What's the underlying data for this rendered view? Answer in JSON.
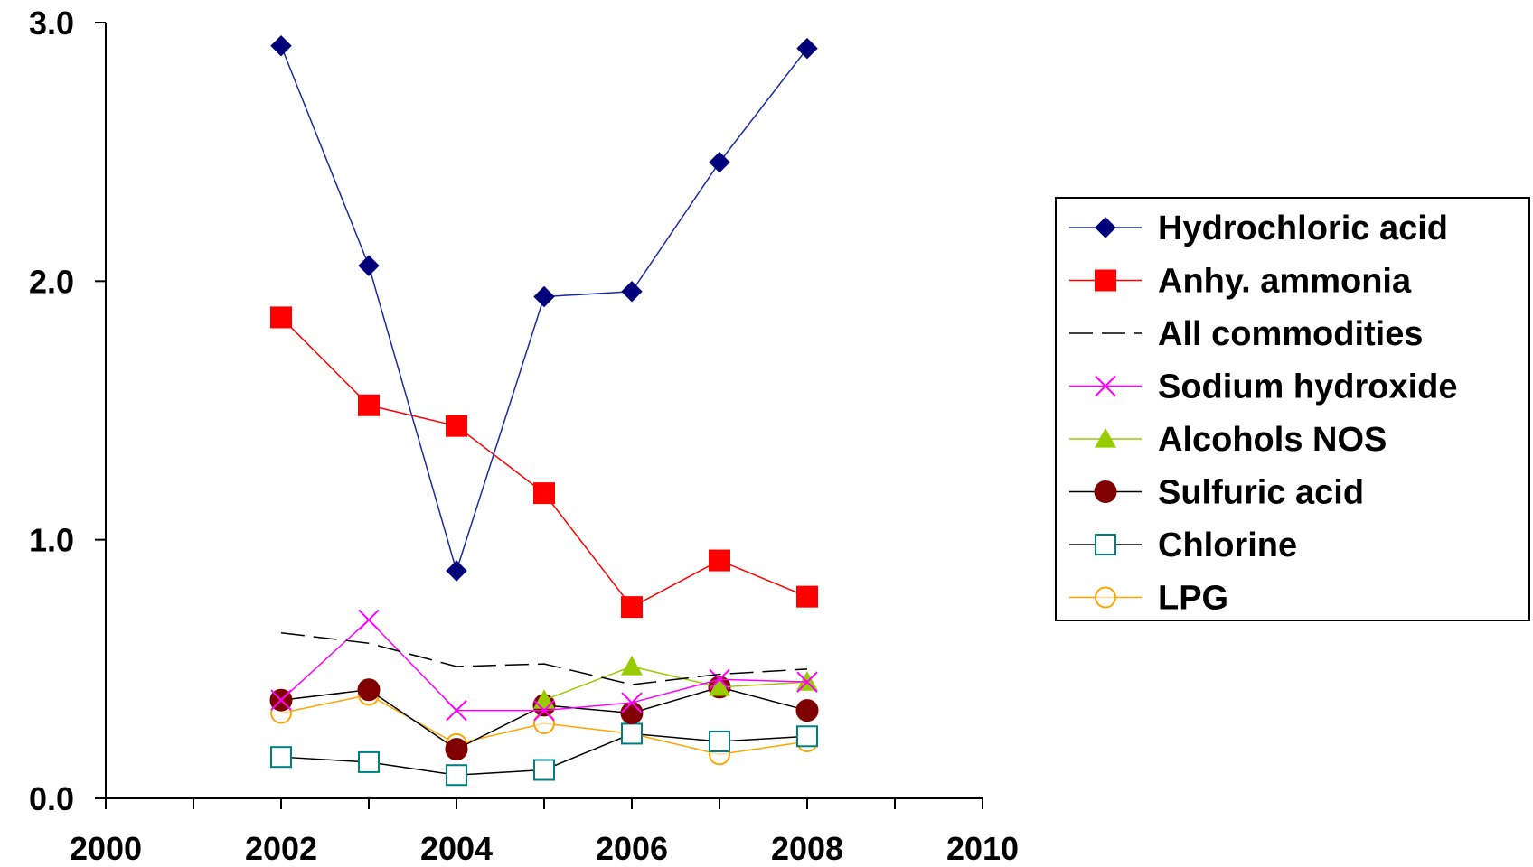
{
  "chart_data": {
    "type": "line",
    "xlim": [
      2000,
      2010
    ],
    "ylim": [
      0,
      3.0
    ],
    "x_ticks": [
      "2000",
      "2002",
      "2004",
      "2006",
      "2008",
      "2010"
    ],
    "y_ticks": [
      "0.0",
      "1.0",
      "2.0",
      "3.0"
    ],
    "x_ticks_minor": [
      2001,
      2003,
      2005,
      2007,
      2009
    ],
    "grid": false,
    "legend_position": "right",
    "x": [
      2002,
      2003,
      2004,
      2005,
      2006,
      2007,
      2008
    ],
    "series": [
      {
        "name": "Hydrochloric acid",
        "color": "#1a2aa8",
        "marker_color": "#00007a",
        "marker": "diamond",
        "dash": false,
        "values": [
          2.91,
          2.06,
          0.88,
          1.94,
          1.96,
          2.46,
          2.9
        ]
      },
      {
        "name": "Anhy. ammonia",
        "color": "#ff0000",
        "marker_color": "#ff0000",
        "marker": "square",
        "dash": false,
        "values": [
          1.86,
          1.52,
          1.44,
          1.18,
          0.74,
          0.92,
          0.78
        ]
      },
      {
        "name": "All commodities",
        "color": "#000000",
        "marker_color": "#000000",
        "marker": "none",
        "dash": true,
        "values": [
          0.64,
          0.6,
          0.51,
          0.52,
          0.44,
          0.48,
          0.5
        ]
      },
      {
        "name": "Sodium hydroxide",
        "color": "#ff00ff",
        "marker_color": "#ff00ff",
        "marker": "x",
        "dash": false,
        "values": [
          0.38,
          0.69,
          0.34,
          0.34,
          0.37,
          0.46,
          0.45
        ]
      },
      {
        "name": "Alcohols NOS",
        "color": "#99cc00",
        "marker_color": "#99cc00",
        "marker": "triangle",
        "dash": false,
        "values": [
          null,
          null,
          null,
          0.38,
          0.51,
          0.43,
          0.45
        ]
      },
      {
        "name": "Sulfuric acid",
        "color": "#000000",
        "marker_color": "#800000",
        "marker": "circle",
        "dash": false,
        "values": [
          0.38,
          0.42,
          0.19,
          0.36,
          0.33,
          0.43,
          0.34
        ]
      },
      {
        "name": "Chlorine",
        "color": "#000000",
        "marker_color": "#008080",
        "marker": "open-square",
        "dash": false,
        "values": [
          0.16,
          0.14,
          0.09,
          0.11,
          0.25,
          0.22,
          0.24
        ]
      },
      {
        "name": "LPG",
        "color": "#ffa500",
        "marker_color": "#ffa500",
        "marker": "open-circle",
        "dash": false,
        "values": [
          0.33,
          0.4,
          0.21,
          0.29,
          0.25,
          0.17,
          0.22
        ]
      }
    ]
  }
}
